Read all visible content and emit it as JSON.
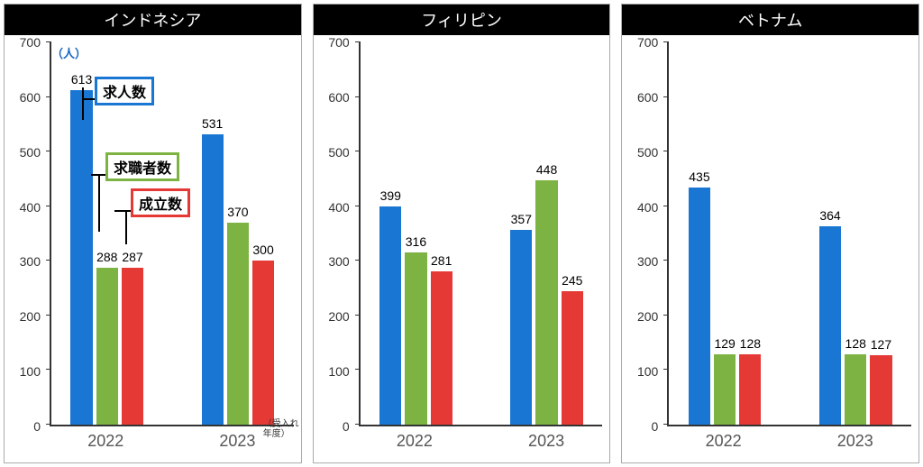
{
  "colors": {
    "bar1": "#1976d2",
    "bar2": "#7cb342",
    "bar3": "#e53935",
    "title_bg": "#000000",
    "title_fg": "#ffffff",
    "axis": "#333333",
    "unit": "#1565c0"
  },
  "layout": {
    "ymax": 700,
    "ystep": 100,
    "bar_width_pct": 9,
    "group_gap_pct": 4,
    "between_groups_pct": 12,
    "left_margin_pct": 8
  },
  "panels": [
    {
      "title": "インドネシア",
      "unit_label": "（人）",
      "axis_note": "（受入れ\n年度）",
      "show_legend": true,
      "legend": [
        {
          "text": "求人数",
          "border": "#1976d2"
        },
        {
          "text": "求職者数",
          "border": "#7cb342"
        },
        {
          "text": "成立数",
          "border": "#e53935"
        }
      ],
      "groups": [
        {
          "label": "2022",
          "values": [
            613,
            288,
            287
          ]
        },
        {
          "label": "2023",
          "values": [
            531,
            370,
            300
          ]
        }
      ]
    },
    {
      "title": "フィリピン",
      "show_legend": false,
      "groups": [
        {
          "label": "2022",
          "values": [
            399,
            316,
            281
          ]
        },
        {
          "label": "2023",
          "values": [
            357,
            448,
            245
          ]
        }
      ]
    },
    {
      "title": "ベトナム",
      "show_legend": false,
      "groups": [
        {
          "label": "2022",
          "values": [
            435,
            129,
            128
          ]
        },
        {
          "label": "2023",
          "values": [
            364,
            128,
            127
          ]
        }
      ]
    }
  ]
}
